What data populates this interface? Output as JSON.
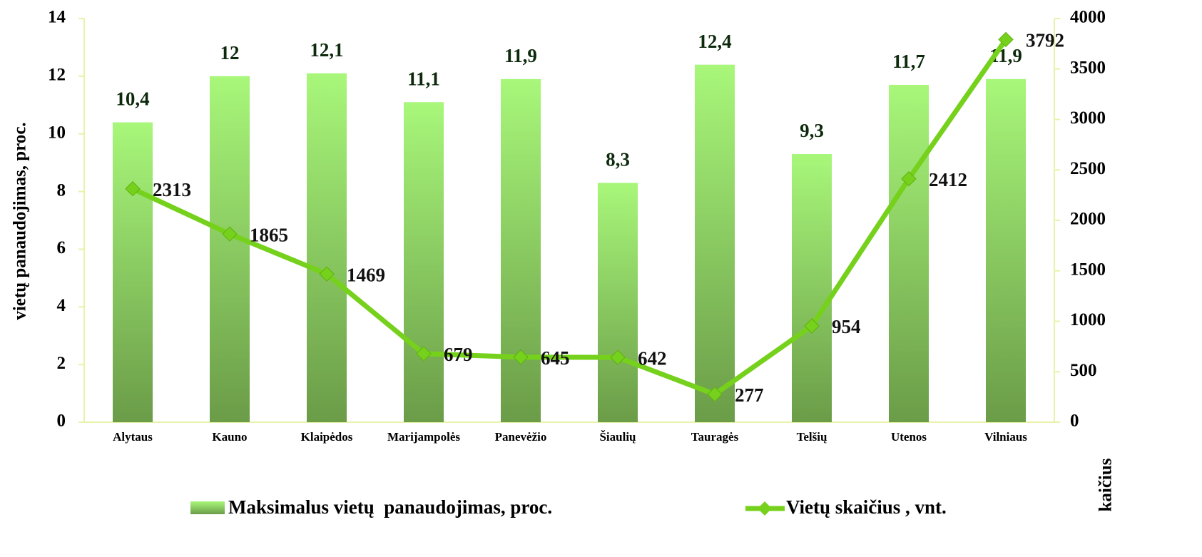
{
  "chart_data": {
    "type": "bar",
    "categories": [
      "Alytaus",
      "Kauno",
      "Klaipėdos",
      "Marijampolės",
      "Panevėžio",
      "Šiaulių",
      "Tauragės",
      "Telšių",
      "Utenos",
      "Vilniaus"
    ],
    "series": [
      {
        "name": "Maksimalus vietų  panaudojimas, proc.",
        "color": "#8fd35f",
        "values": [
          10.4,
          12,
          12.1,
          11.1,
          11.9,
          8.3,
          12.4,
          9.3,
          11.7,
          11.9
        ],
        "value_labels": [
          "10,4",
          "12",
          "12,1",
          "11,1",
          "11,9",
          "8,3",
          "12,4",
          "9,3",
          "11,7",
          "11,9"
        ]
      },
      {
        "name": "Vietų skaičius , vnt.",
        "color": "#76d11c",
        "type": "line",
        "axis": "y2",
        "values": [
          2313,
          1865,
          1469,
          679,
          645,
          642,
          277,
          954,
          2412,
          3792
        ]
      }
    ],
    "ylabel": "vietų panaudojimas, proc.",
    "y2label": "kaičius",
    "ylim": [
      0,
      14
    ],
    "yticks": [
      0,
      2,
      4,
      6,
      8,
      10,
      12,
      14
    ],
    "y2lim": [
      0,
      4000
    ],
    "y2ticks": [
      0,
      500,
      1000,
      1500,
      2000,
      2500,
      3000,
      3500,
      4000
    ]
  }
}
